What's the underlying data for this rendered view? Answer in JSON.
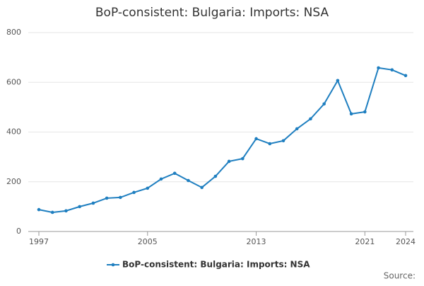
{
  "chart_data": {
    "type": "line",
    "title": "BoP-consistent: Bulgaria: Imports: NSA",
    "x": [
      1997,
      1998,
      1999,
      2000,
      2001,
      2002,
      2003,
      2004,
      2005,
      2006,
      2007,
      2008,
      2009,
      2010,
      2011,
      2012,
      2013,
      2014,
      2015,
      2016,
      2017,
      2018,
      2019,
      2020,
      2021,
      2022,
      2023,
      2024
    ],
    "series": [
      {
        "name": "BoP-consistent: Bulgaria: Imports: NSA",
        "color": "#1f7fc0",
        "values": [
          88,
          77,
          83,
          100,
          114,
          134,
          137,
          157,
          174,
          211,
          234,
          205,
          177,
          222,
          282,
          293,
          373,
          353,
          365,
          413,
          453,
          513,
          607,
          473,
          481,
          658,
          650,
          627
        ]
      }
    ],
    "xlim": [
      1997,
      2024
    ],
    "xticks": [
      1997,
      2005,
      2013,
      2021,
      2024
    ],
    "ylim": [
      0,
      800
    ],
    "yticks": [
      0,
      200,
      400,
      600,
      800
    ],
    "grid": true,
    "legend": "bottom",
    "source": "Source:"
  }
}
